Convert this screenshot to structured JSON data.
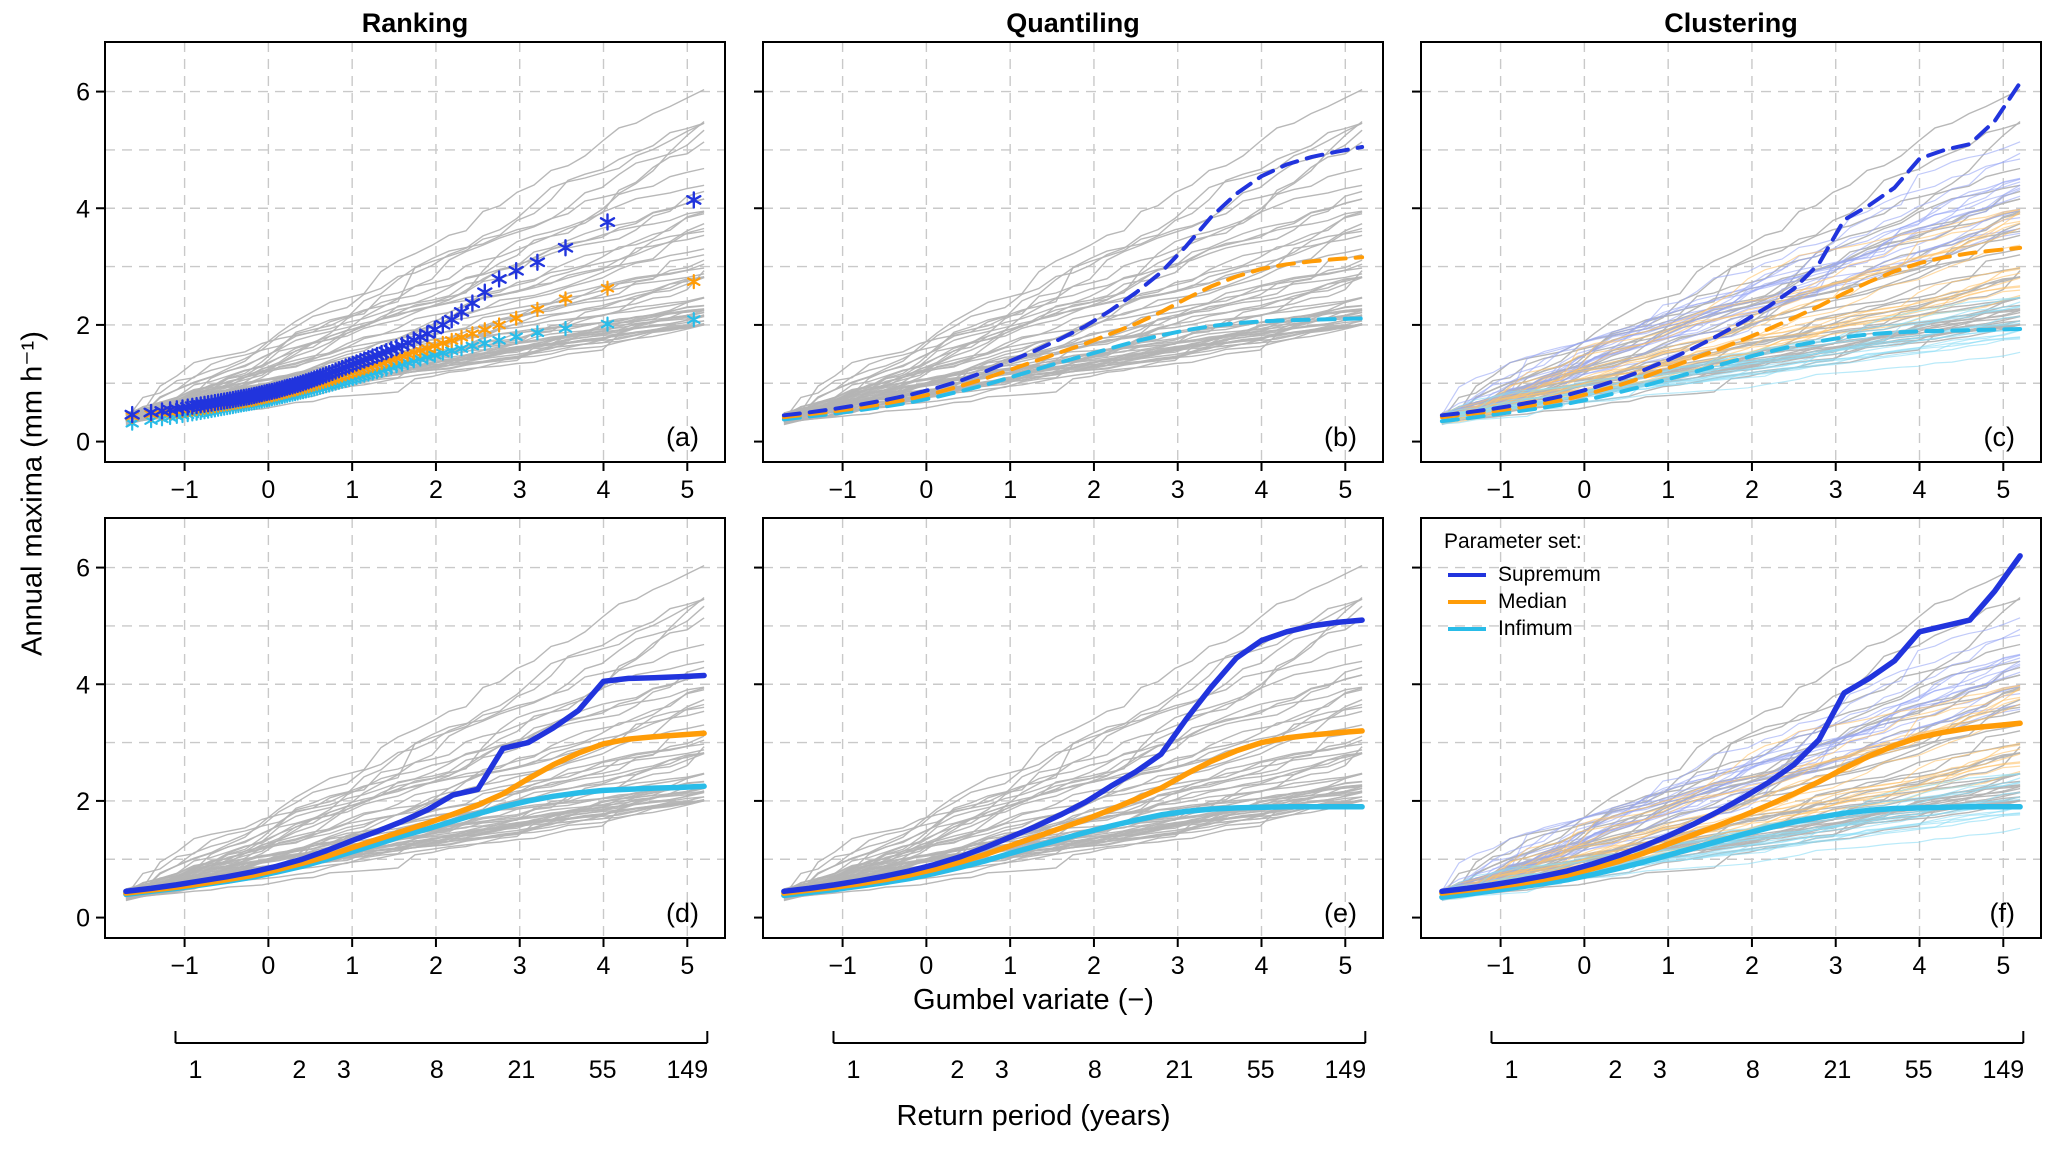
{
  "figure": {
    "columns": [
      "Ranking",
      "Quantiling",
      "Clustering"
    ],
    "ylabel": "Annual maxima (mm h⁻¹)",
    "xlabel": "Gumbel variate (−)",
    "return_label": "Return period (years)",
    "colors": {
      "supremum": "#2134dd",
      "median": "#ff9c07",
      "infimum": "#29bce8",
      "ensemble": "#b4b4b4",
      "grid": "#c9c9c9"
    },
    "legend": {
      "title": "Parameter set:",
      "entries": [
        {
          "name": "supremum",
          "label": "Supremum"
        },
        {
          "name": "median",
          "label": "Median"
        },
        {
          "name": "infimum",
          "label": "Infimum"
        }
      ]
    }
  },
  "axes": {
    "xlim": [
      -1.95,
      5.45
    ],
    "ylim": [
      -0.35,
      6.85
    ],
    "xticks": [
      -1,
      0,
      1,
      2,
      3,
      4,
      5
    ],
    "yticks": [
      0,
      2,
      4,
      6
    ],
    "ygrid": [
      1,
      2,
      3,
      4,
      5,
      6
    ]
  },
  "return_axis": {
    "ticks": [
      {
        "label": "1",
        "g": -0.87
      },
      {
        "label": "2",
        "g": 0.37
      },
      {
        "label": "3",
        "g": 0.9
      },
      {
        "label": "8",
        "g": 2.01
      },
      {
        "label": "21",
        "g": 3.02
      },
      {
        "label": "55",
        "g": 3.99
      },
      {
        "label": "149",
        "g": 5.0
      }
    ]
  },
  "gumbel_x": [
    -1.7,
    -1.4,
    -1.1,
    -0.8,
    -0.5,
    -0.2,
    0.1,
    0.4,
    0.7,
    1.0,
    1.3,
    1.6,
    1.9,
    2.2,
    2.5,
    2.8,
    3.1,
    3.4,
    3.7,
    4.0,
    4.3,
    4.6,
    4.9,
    5.2
  ],
  "chart_data": [
    {
      "id": "a",
      "label": "(a)",
      "title": "Ranking",
      "type": "line",
      "style": "markers",
      "row": 0,
      "col": 0,
      "series": {
        "supremum": [
          0.45,
          0.5,
          0.56,
          0.63,
          0.7,
          0.78,
          0.88,
          1.0,
          1.15,
          1.32,
          1.48,
          1.65,
          1.85,
          2.1,
          2.45,
          2.85,
          3.0,
          3.2,
          3.45,
          3.7,
          4.1,
          4.11,
          4.13,
          4.15
        ],
        "median": [
          0.42,
          0.47,
          0.52,
          0.58,
          0.65,
          0.72,
          0.82,
          0.93,
          1.05,
          1.2,
          1.33,
          1.47,
          1.6,
          1.74,
          1.88,
          2.02,
          2.2,
          2.38,
          2.52,
          2.62,
          2.68,
          2.71,
          2.73,
          2.75
        ],
        "infimum": [
          0.3,
          0.36,
          0.43,
          0.5,
          0.58,
          0.66,
          0.75,
          0.85,
          0.96,
          1.08,
          1.2,
          1.33,
          1.45,
          1.56,
          1.66,
          1.75,
          1.84,
          1.91,
          1.97,
          2.01,
          2.04,
          2.06,
          2.08,
          2.1
        ]
      },
      "ensemble": {
        "count": 55,
        "seed": 42,
        "end_min": 2.0,
        "end_max": 6.2
      }
    },
    {
      "id": "b",
      "label": "(b)",
      "title": "Quantiling",
      "type": "line",
      "style": "dashed",
      "row": 0,
      "col": 1,
      "series": {
        "supremum": [
          0.45,
          0.5,
          0.56,
          0.63,
          0.71,
          0.8,
          0.91,
          1.04,
          1.2,
          1.38,
          1.56,
          1.76,
          1.98,
          2.25,
          2.55,
          2.9,
          3.35,
          3.85,
          4.25,
          4.55,
          4.75,
          4.88,
          4.97,
          5.05
        ],
        "median": [
          0.42,
          0.47,
          0.52,
          0.58,
          0.65,
          0.73,
          0.83,
          0.95,
          1.08,
          1.23,
          1.38,
          1.53,
          1.68,
          1.85,
          2.02,
          2.22,
          2.45,
          2.66,
          2.83,
          2.96,
          3.04,
          3.09,
          3.13,
          3.16
        ],
        "infimum": [
          0.38,
          0.43,
          0.48,
          0.54,
          0.6,
          0.67,
          0.76,
          0.86,
          0.97,
          1.1,
          1.23,
          1.36,
          1.48,
          1.6,
          1.72,
          1.82,
          1.91,
          1.98,
          2.03,
          2.06,
          2.08,
          2.09,
          2.1,
          2.11
        ]
      },
      "ensemble": {
        "count": 55,
        "seed": 42,
        "end_min": 2.0,
        "end_max": 6.2
      }
    },
    {
      "id": "c",
      "label": "(c)",
      "title": "Clustering",
      "type": "line",
      "style": "dashed",
      "row": 0,
      "col": 2,
      "series": {
        "supremum": [
          0.45,
          0.5,
          0.56,
          0.63,
          0.71,
          0.8,
          0.92,
          1.06,
          1.22,
          1.4,
          1.6,
          1.82,
          2.06,
          2.32,
          2.62,
          3.05,
          3.8,
          4.05,
          4.35,
          4.85,
          5.0,
          5.1,
          5.5,
          6.15
        ],
        "median": [
          0.42,
          0.47,
          0.52,
          0.58,
          0.65,
          0.73,
          0.84,
          0.96,
          1.1,
          1.26,
          1.42,
          1.58,
          1.75,
          1.93,
          2.12,
          2.32,
          2.54,
          2.74,
          2.92,
          3.06,
          3.16,
          3.23,
          3.28,
          3.32
        ],
        "infimum": [
          0.35,
          0.4,
          0.46,
          0.52,
          0.58,
          0.65,
          0.74,
          0.84,
          0.95,
          1.07,
          1.19,
          1.31,
          1.43,
          1.54,
          1.64,
          1.72,
          1.79,
          1.84,
          1.87,
          1.89,
          1.9,
          1.91,
          1.92,
          1.93
        ]
      },
      "ensemble": {
        "count": 40,
        "seed": 42,
        "end_min": 2.0,
        "end_max": 6.2
      },
      "groups": [
        {
          "name": "supremum-members",
          "color": "#97a6f5",
          "count": 16,
          "seed": 11,
          "end_min": 3.4,
          "end_max": 5.2
        },
        {
          "name": "median-members",
          "color": "#ffc36b",
          "count": 16,
          "seed": 12,
          "end_min": 2.5,
          "end_max": 4.2
        },
        {
          "name": "infimum-members",
          "color": "#8adcf5",
          "count": 16,
          "seed": 13,
          "end_min": 1.5,
          "end_max": 2.5
        }
      ]
    },
    {
      "id": "d",
      "label": "(d)",
      "title": "Ranking",
      "type": "line",
      "style": "solid",
      "row": 1,
      "col": 0,
      "series": {
        "supremum": [
          0.45,
          0.5,
          0.56,
          0.63,
          0.7,
          0.78,
          0.88,
          1.0,
          1.15,
          1.32,
          1.48,
          1.65,
          1.85,
          2.1,
          2.2,
          2.9,
          3.0,
          3.25,
          3.55,
          4.05,
          4.1,
          4.11,
          4.13,
          4.15
        ],
        "median": [
          0.42,
          0.47,
          0.52,
          0.58,
          0.65,
          0.72,
          0.82,
          0.93,
          1.05,
          1.2,
          1.34,
          1.48,
          1.62,
          1.77,
          1.93,
          2.12,
          2.38,
          2.62,
          2.82,
          2.98,
          3.06,
          3.1,
          3.13,
          3.16
        ],
        "infimum": [
          0.4,
          0.45,
          0.5,
          0.56,
          0.62,
          0.69,
          0.78,
          0.88,
          1.0,
          1.13,
          1.26,
          1.4,
          1.52,
          1.65,
          1.78,
          1.9,
          2.0,
          2.08,
          2.14,
          2.18,
          2.2,
          2.22,
          2.23,
          2.25
        ]
      },
      "ensemble": {
        "count": 55,
        "seed": 42,
        "end_min": 2.0,
        "end_max": 6.2
      }
    },
    {
      "id": "e",
      "label": "(e)",
      "title": "Quantiling",
      "type": "line",
      "style": "solid",
      "row": 1,
      "col": 1,
      "series": {
        "supremum": [
          0.45,
          0.5,
          0.56,
          0.63,
          0.71,
          0.8,
          0.91,
          1.04,
          1.2,
          1.38,
          1.56,
          1.76,
          1.98,
          2.25,
          2.5,
          2.8,
          3.4,
          3.95,
          4.45,
          4.75,
          4.9,
          5.0,
          5.06,
          5.1
        ],
        "median": [
          0.42,
          0.47,
          0.52,
          0.58,
          0.65,
          0.73,
          0.83,
          0.95,
          1.08,
          1.23,
          1.38,
          1.53,
          1.68,
          1.85,
          2.03,
          2.22,
          2.46,
          2.68,
          2.86,
          3.0,
          3.08,
          3.13,
          3.17,
          3.2
        ],
        "infimum": [
          0.38,
          0.43,
          0.48,
          0.54,
          0.6,
          0.67,
          0.76,
          0.86,
          0.97,
          1.1,
          1.22,
          1.34,
          1.46,
          1.57,
          1.67,
          1.76,
          1.82,
          1.86,
          1.88,
          1.89,
          1.9,
          1.9,
          1.9,
          1.9
        ]
      },
      "ensemble": {
        "count": 55,
        "seed": 42,
        "end_min": 2.0,
        "end_max": 6.2
      }
    },
    {
      "id": "f",
      "label": "(f)",
      "title": "Clustering",
      "type": "line",
      "style": "solid",
      "row": 1,
      "col": 2,
      "series": {
        "supremum": [
          0.45,
          0.5,
          0.56,
          0.63,
          0.71,
          0.8,
          0.92,
          1.06,
          1.22,
          1.4,
          1.6,
          1.82,
          2.06,
          2.32,
          2.62,
          3.05,
          3.85,
          4.1,
          4.4,
          4.9,
          5.0,
          5.1,
          5.6,
          6.2
        ],
        "median": [
          0.42,
          0.47,
          0.52,
          0.58,
          0.65,
          0.73,
          0.84,
          0.96,
          1.1,
          1.26,
          1.42,
          1.58,
          1.75,
          1.93,
          2.12,
          2.33,
          2.56,
          2.77,
          2.95,
          3.09,
          3.18,
          3.25,
          3.29,
          3.33
        ],
        "infimum": [
          0.35,
          0.4,
          0.46,
          0.52,
          0.58,
          0.65,
          0.74,
          0.84,
          0.95,
          1.07,
          1.19,
          1.31,
          1.43,
          1.54,
          1.64,
          1.72,
          1.79,
          1.84,
          1.87,
          1.88,
          1.89,
          1.9,
          1.9,
          1.9
        ]
      },
      "ensemble": {
        "count": 40,
        "seed": 42,
        "end_min": 2.0,
        "end_max": 6.2
      },
      "groups": [
        {
          "name": "supremum-members",
          "color": "#97a6f5",
          "count": 16,
          "seed": 11,
          "end_min": 3.4,
          "end_max": 5.2
        },
        {
          "name": "median-members",
          "color": "#ffc36b",
          "count": 16,
          "seed": 12,
          "end_min": 2.5,
          "end_max": 4.2
        },
        {
          "name": "infimum-members",
          "color": "#8adcf5",
          "count": 16,
          "seed": 13,
          "end_min": 1.5,
          "end_max": 2.5
        }
      ]
    }
  ]
}
